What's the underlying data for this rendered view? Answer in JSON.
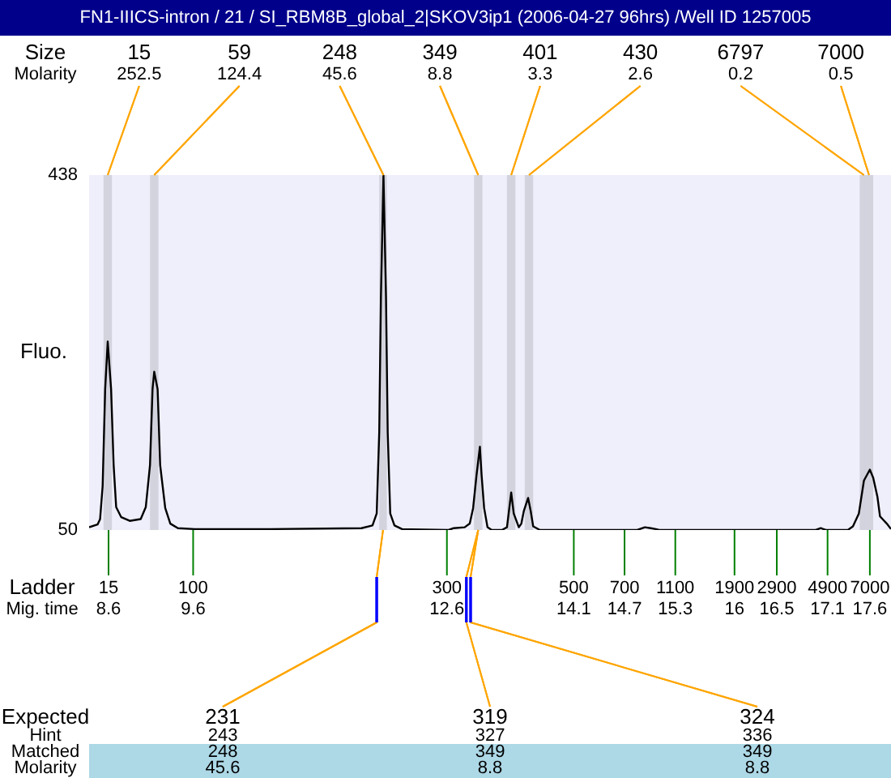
{
  "chart_data": {
    "type": "line",
    "title": "FN1-IIICS-intron / 21 / SI_RBM8B_global_2|SKOV3ip1 (2006-04-27 96hrs) /Well ID 1257005",
    "ylabel": "Fluo.",
    "xlabel": "Mig. time",
    "x": [
      8.37,
      8.47,
      8.5,
      8.53,
      8.56,
      8.59,
      8.63,
      8.66,
      8.69,
      8.75,
      8.85,
      8.98,
      9.04,
      9.09,
      9.12,
      9.14,
      9.18,
      9.21,
      9.27,
      9.33,
      9.42,
      9.62,
      10.51,
      11.59,
      11.72,
      11.77,
      11.8,
      11.82,
      11.85,
      11.88,
      11.9,
      11.93,
      11.98,
      12.07,
      12.62,
      12.68,
      12.81,
      12.87,
      12.91,
      12.95,
      12.99,
      13.01,
      13.04,
      13.08,
      13.13,
      13.25,
      13.31,
      13.33,
      13.36,
      13.39,
      13.45,
      13.48,
      13.51,
      13.56,
      13.59,
      13.62,
      13.7,
      14.85,
      14.94,
      15.01,
      15.07,
      15.11,
      16.96,
      17.02,
      17.08,
      17.18,
      17.34,
      17.4,
      17.47,
      17.53,
      17.6,
      17.64,
      17.69,
      17.72,
      17.75,
      17.8,
      17.85
    ],
    "series": [
      {
        "color": "#000000",
        "values": [
          53,
          56,
          62,
          98,
          204,
          256,
          204,
          121,
          75,
          64,
          60,
          62,
          75,
          121,
          204,
          223,
          204,
          121,
          74,
          57,
          52,
          51,
          51,
          52,
          55,
          68,
          157,
          305,
          438,
          305,
          157,
          68,
          55,
          51,
          50,
          52,
          53,
          57,
          74,
          110,
          141,
          110,
          74,
          53,
          50,
          50,
          53,
          68,
          91,
          68,
          53,
          57,
          71,
          85,
          71,
          54,
          50,
          50,
          53,
          52,
          51,
          50,
          50,
          52,
          50,
          50,
          50,
          54,
          68,
          104,
          116,
          107,
          86,
          65,
          62,
          57,
          51
        ]
      }
    ],
    "xlim": [
      8.37,
      17.85
    ],
    "xticks": [
      8.6,
      9.6,
      12.6,
      14.1,
      14.7,
      15.3,
      16,
      16.5,
      17.1,
      17.6
    ],
    "ylim": [
      50,
      438
    ],
    "yticks": [
      50,
      438
    ],
    "bands": [
      {
        "axis": "x",
        "from": 8.54,
        "to": 8.64,
        "color": "#d3d3de"
      },
      {
        "axis": "x",
        "from": 9.09,
        "to": 9.19,
        "color": "#d3d3de"
      },
      {
        "axis": "x",
        "from": 11.8,
        "to": 11.89,
        "color": "#d3d3de"
      },
      {
        "axis": "x",
        "from": 12.92,
        "to": 13.02,
        "color": "#d3d3de"
      },
      {
        "axis": "x",
        "from": 13.31,
        "to": 13.41,
        "color": "#d3d3de"
      },
      {
        "axis": "x",
        "from": 13.52,
        "to": 13.62,
        "color": "#d3d3de"
      },
      {
        "axis": "x",
        "from": 17.48,
        "to": 17.58,
        "color": "#d3d3de"
      },
      {
        "axis": "x",
        "from": 17.54,
        "to": 17.64,
        "color": "#d3d3de"
      }
    ],
    "annotations": [
      "Size",
      "Molarity",
      {
        "text": "15",
        "x": 8.59,
        "y": 438
      },
      {
        "text": "252.5",
        "x": 8.59,
        "y": 438
      },
      {
        "text": "59",
        "x": 9.14,
        "y": 438
      },
      {
        "text": "124.4",
        "x": 9.14,
        "y": 438
      },
      {
        "text": "248",
        "x": 11.85,
        "y": 438
      },
      {
        "text": "45.6",
        "x": 11.85,
        "y": 438
      },
      {
        "text": "349",
        "x": 12.97,
        "y": 438
      },
      {
        "text": "8.8",
        "x": 12.97,
        "y": 438
      },
      {
        "text": "401",
        "x": 13.36,
        "y": 438
      },
      {
        "text": "3.3",
        "x": 13.36,
        "y": 438
      },
      {
        "text": "430",
        "x": 13.57,
        "y": 438
      },
      {
        "text": "2.6",
        "x": 13.57,
        "y": 438
      },
      {
        "text": "6797",
        "x": 17.53,
        "y": 438
      },
      {
        "text": "0.2",
        "x": 17.53,
        "y": 438
      },
      {
        "text": "7000",
        "x": 17.59,
        "y": 438
      },
      {
        "text": "0.5",
        "x": 17.59,
        "y": 438
      },
      "Expected",
      "Hint",
      "Matched",
      "Molarity",
      "248",
      "45.6",
      "349",
      "8.8",
      "349",
      "8.8",
      {
        "text": "231",
        "x": 11.77,
        "y": 50
      },
      {
        "text": "243",
        "x": 11.77,
        "y": 50
      },
      {
        "text": "319",
        "x": 12.83,
        "y": 50
      },
      {
        "text": "327",
        "x": 12.83,
        "y": 50
      },
      {
        "text": "324",
        "x": 12.88,
        "y": 50
      },
      {
        "text": "336",
        "x": 12.88,
        "y": 50
      },
      "Ladder",
      "15",
      "100",
      "300",
      "500",
      "700",
      "1100",
      "1900",
      "2900",
      "4900",
      "7000"
    ]
  }
}
